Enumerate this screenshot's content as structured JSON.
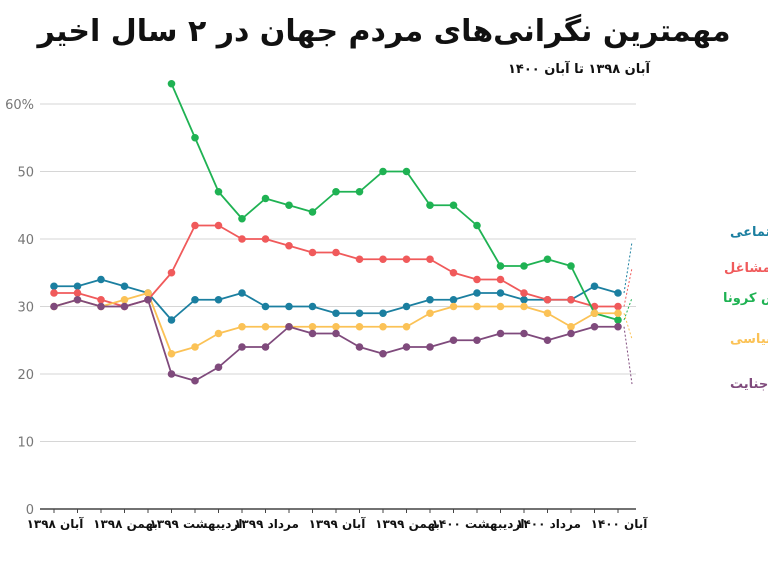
{
  "chart_data": {
    "type": "line",
    "title": "مهمترین نگرانی‌های مردم جهان در ۲ سال اخیر",
    "subtitle": "آبان ۱۳۹۸ تا آبان ۱۴۰۰",
    "xlabel": "",
    "ylabel": "",
    "ylim": [
      0,
      60
    ],
    "y_ticks": [
      "0",
      "10",
      "20",
      "30",
      "40",
      "50",
      "60%"
    ],
    "y_tick_values": [
      0,
      10,
      20,
      30,
      40,
      50,
      60
    ],
    "grid": true,
    "legend": "right",
    "x_labels": [
      "آبان ۱۳۹۸",
      "بهمن ۱۳۹۸",
      "اردیبهشت ۱۳۹۹",
      "مرداد ۱۳۹۹",
      "آبان ۱۳۹۹",
      "بهمن ۱۳۹۹",
      "اردیبهشت ۱۴۰۰",
      "مرداد ۱۴۰۰",
      "آبان ۱۴۰۰"
    ],
    "x_label_points": [
      0,
      3,
      6,
      9,
      12,
      15,
      18,
      21,
      24
    ],
    "series": [
      {
        "name": "فقر و نابرابری اجتماعی",
        "color": "#1b7fa0",
        "values": [
          33,
          33,
          34,
          33,
          32,
          28,
          31,
          31,
          32,
          30,
          30,
          30,
          29,
          29,
          29,
          30,
          31,
          31,
          32,
          32,
          31,
          31,
          31,
          33,
          32
        ]
      },
      {
        "name": "بیکاری و مشاغل",
        "color": "#f05a5b",
        "values": [
          32,
          32,
          31,
          30,
          31,
          35,
          42,
          42,
          40,
          40,
          39,
          38,
          38,
          37,
          37,
          37,
          37,
          35,
          34,
          34,
          32,
          31,
          31,
          30,
          30
        ]
      },
      {
        "name": "ویروس کرونا",
        "color": "#1fb253",
        "values": [
          null,
          null,
          null,
          null,
          null,
          63,
          55,
          47,
          43,
          46,
          45,
          44,
          47,
          47,
          50,
          50,
          45,
          45,
          42,
          36,
          36,
          37,
          36,
          29,
          28
        ]
      },
      {
        "name": "فساد مالی و سیاسی",
        "color": "#fbc256",
        "values": [
          30,
          31,
          30,
          31,
          32,
          23,
          24,
          26,
          27,
          27,
          27,
          27,
          27,
          27,
          27,
          27,
          29,
          30,
          30,
          30,
          30,
          29,
          27,
          29,
          29
        ]
      },
      {
        "name": "جرم و جنایت",
        "color": "#7f4a7c",
        "values": [
          30,
          31,
          30,
          30,
          31,
          20,
          19,
          21,
          24,
          24,
          27,
          26,
          26,
          24,
          23,
          24,
          24,
          25,
          25,
          26,
          26,
          25,
          26,
          27,
          27
        ]
      }
    ]
  }
}
